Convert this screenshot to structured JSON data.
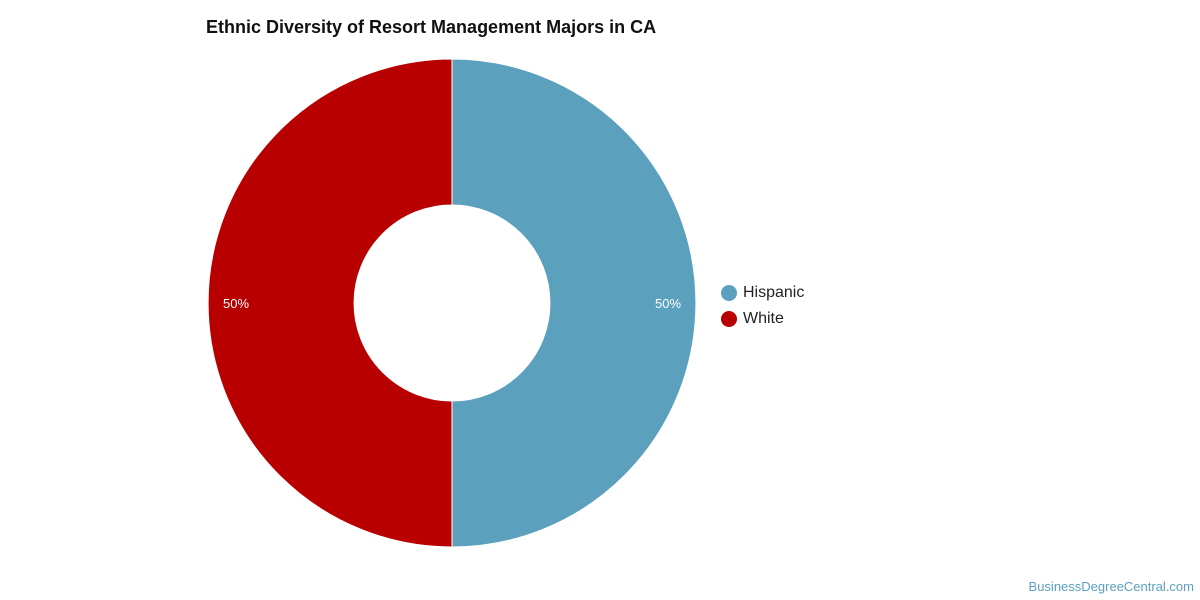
{
  "chart_data": {
    "type": "pie",
    "title": "Ethnic Diversity of Resort Management Majors in CA",
    "categories": [
      "Hispanic",
      "White"
    ],
    "values": [
      50,
      50
    ],
    "value_labels": [
      "50%",
      "50%"
    ],
    "colors": [
      "#5ba1be",
      "#b90000"
    ],
    "donut": true,
    "legend_position": "right"
  },
  "legend": {
    "items": [
      {
        "label": "Hispanic",
        "color": "#5ba1be"
      },
      {
        "label": "White",
        "color": "#b90000"
      }
    ]
  },
  "watermark": "BusinessDegreeCentral.com"
}
